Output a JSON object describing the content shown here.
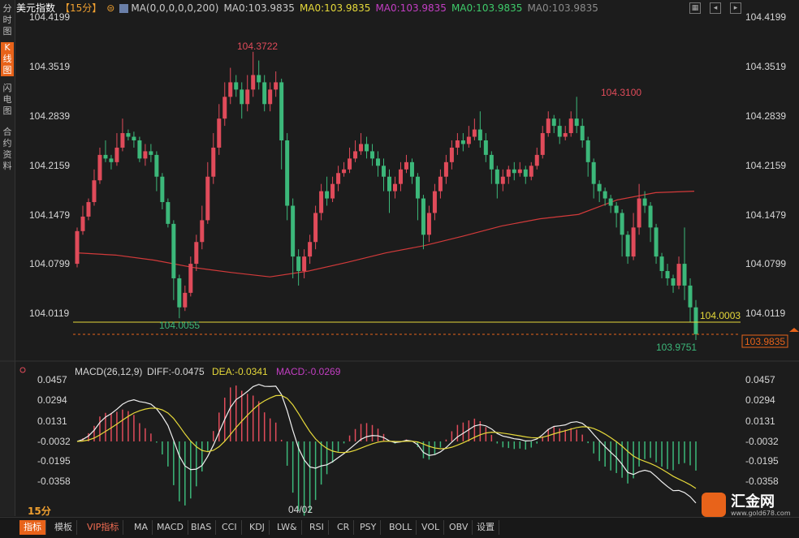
{
  "sidebar": {
    "tabs": [
      {
        "label": "分时图",
        "active": false
      },
      {
        "label": "K线图",
        "active": true
      },
      {
        "label": "闪电图",
        "active": false
      },
      {
        "label": "合约资料",
        "active": false
      }
    ]
  },
  "header": {
    "instrument": "美元指数",
    "period_badge": "【15分】",
    "ma_config": "MA(0,0,0,0,0,200)",
    "ma_values": [
      {
        "label": "MA0:103.9835",
        "color": "#c8c8c8"
      },
      {
        "label": "MA0:103.9835",
        "color": "#e6d93a"
      },
      {
        "label": "MA0:103.9835",
        "color": "#c33ec3"
      },
      {
        "label": "MA0:103.9835",
        "color": "#3ecb6a"
      },
      {
        "label": "MA0:103.9835",
        "color": "#8a8a8a"
      }
    ]
  },
  "price_axis": [
    "104.4199",
    "104.3519",
    "104.2839",
    "104.2159",
    "104.1479",
    "104.0799",
    "104.0119"
  ],
  "annotations": {
    "high1": "104.3722",
    "high2": "104.3100",
    "low1": "104.0055",
    "low2": "103.9751",
    "hline": "104.0003",
    "current_tag": "103.9835"
  },
  "macd": {
    "title": "MACD(26,12,9)",
    "diff": "DIFF:-0.0475",
    "dea": "DEA:-0.0341",
    "macd": "MACD:-0.0269",
    "axis": [
      "0.0457",
      "0.0294",
      "0.0131",
      "-0.0032",
      "-0.0195",
      "-0.0358"
    ]
  },
  "date_label": "04/02",
  "period_label": "15分",
  "toolbar": [
    "指标",
    "模板",
    "VIP指标",
    "MA",
    "MACD",
    "BIAS",
    "CCI",
    "KDJ",
    "LW&",
    "RSI",
    "CR",
    "PSY",
    "BOLL",
    "VOL",
    "OBV",
    "设置"
  ],
  "logo": {
    "name": "汇金网",
    "url": "www.gold678.com"
  },
  "colors": {
    "up": "#e04b5a",
    "down": "#3cb87a",
    "ma": "#d23a3a",
    "accent": "#e8631a"
  },
  "chart_data": {
    "type": "candlestick",
    "candles": [
      [
        104.08,
        104.125,
        104.075,
        104.13
      ],
      [
        104.125,
        104.145,
        104.12,
        104.16
      ],
      [
        104.145,
        104.165,
        104.14,
        104.17
      ],
      [
        104.165,
        104.195,
        104.16,
        104.21
      ],
      [
        104.195,
        104.23,
        104.19,
        104.24
      ],
      [
        104.23,
        104.225,
        104.22,
        104.25
      ],
      [
        104.225,
        104.22,
        104.21,
        104.23
      ],
      [
        104.22,
        104.24,
        104.215,
        104.26
      ],
      [
        104.24,
        104.26,
        104.235,
        104.28
      ],
      [
        104.26,
        104.255,
        104.25,
        104.265
      ],
      [
        104.255,
        104.25,
        104.24,
        104.262
      ],
      [
        104.25,
        104.225,
        104.22,
        104.255
      ],
      [
        104.225,
        104.235,
        104.215,
        104.245
      ],
      [
        104.235,
        104.23,
        104.22,
        104.245
      ],
      [
        104.23,
        104.2,
        104.18,
        104.235
      ],
      [
        104.2,
        104.165,
        104.155,
        104.205
      ],
      [
        104.165,
        104.135,
        104.13,
        104.17
      ],
      [
        104.135,
        104.06,
        104.03,
        104.14
      ],
      [
        104.06,
        104.02,
        104.005,
        104.065
      ],
      [
        104.02,
        104.04,
        104.015,
        104.05
      ],
      [
        104.04,
        104.08,
        104.035,
        104.09
      ],
      [
        104.08,
        104.11,
        104.07,
        104.12
      ],
      [
        104.11,
        104.14,
        104.1,
        104.16
      ],
      [
        104.14,
        104.2,
        104.135,
        104.22
      ],
      [
        104.2,
        104.24,
        104.19,
        104.26
      ],
      [
        104.24,
        104.28,
        104.23,
        104.3
      ],
      [
        104.28,
        104.31,
        104.27,
        104.33
      ],
      [
        104.31,
        104.33,
        104.3,
        104.35
      ],
      [
        104.33,
        104.32,
        104.31,
        104.34
      ],
      [
        104.32,
        104.3,
        104.28,
        104.33
      ],
      [
        104.3,
        104.32,
        104.29,
        104.34
      ],
      [
        104.32,
        104.34,
        104.31,
        104.372
      ],
      [
        104.34,
        104.33,
        104.32,
        104.36
      ],
      [
        104.33,
        104.3,
        104.29,
        104.34
      ],
      [
        104.3,
        104.32,
        104.29,
        104.33
      ],
      [
        104.32,
        104.33,
        104.31,
        104.345
      ],
      [
        104.33,
        104.25,
        104.21,
        104.335
      ],
      [
        104.25,
        104.16,
        104.14,
        104.26
      ],
      [
        104.16,
        104.09,
        104.06,
        104.17
      ],
      [
        104.09,
        104.07,
        104.05,
        104.1
      ],
      [
        104.07,
        104.09,
        104.06,
        104.1
      ],
      [
        104.09,
        104.11,
        104.08,
        104.12
      ],
      [
        104.11,
        104.15,
        104.1,
        104.16
      ],
      [
        104.15,
        104.18,
        104.14,
        104.19
      ],
      [
        104.18,
        104.17,
        104.16,
        104.2
      ],
      [
        104.17,
        104.19,
        104.165,
        104.2
      ],
      [
        104.19,
        104.205,
        104.18,
        104.215
      ],
      [
        104.205,
        104.21,
        104.2,
        104.22
      ],
      [
        104.21,
        104.225,
        104.205,
        104.24
      ],
      [
        104.225,
        104.235,
        104.22,
        104.25
      ],
      [
        104.235,
        104.245,
        104.23,
        104.26
      ],
      [
        104.245,
        104.235,
        104.225,
        104.255
      ],
      [
        104.235,
        104.225,
        104.215,
        104.245
      ],
      [
        104.225,
        104.215,
        104.2,
        104.235
      ],
      [
        104.215,
        104.2,
        104.18,
        104.225
      ],
      [
        104.2,
        104.18,
        104.15,
        104.21
      ],
      [
        104.18,
        104.19,
        104.17,
        104.2
      ],
      [
        104.19,
        104.21,
        104.18,
        104.22
      ],
      [
        104.21,
        104.22,
        104.205,
        104.23
      ],
      [
        104.22,
        104.2,
        104.19,
        104.225
      ],
      [
        104.2,
        104.17,
        104.14,
        104.205
      ],
      [
        104.17,
        104.12,
        104.1,
        104.175
      ],
      [
        104.12,
        104.15,
        104.11,
        104.16
      ],
      [
        104.15,
        104.18,
        104.14,
        104.19
      ],
      [
        104.18,
        104.2,
        104.17,
        104.21
      ],
      [
        104.2,
        104.22,
        104.19,
        104.23
      ],
      [
        104.22,
        104.24,
        104.21,
        104.25
      ],
      [
        104.24,
        104.25,
        104.23,
        104.26
      ],
      [
        104.25,
        104.245,
        104.235,
        104.26
      ],
      [
        104.245,
        104.255,
        104.24,
        104.27
      ],
      [
        104.255,
        104.265,
        104.25,
        104.28
      ],
      [
        104.265,
        104.25,
        104.24,
        104.29
      ],
      [
        104.25,
        104.23,
        104.22,
        104.26
      ],
      [
        104.23,
        104.21,
        104.19,
        104.235
      ],
      [
        104.21,
        104.19,
        104.17,
        104.215
      ],
      [
        104.19,
        104.2,
        104.18,
        104.21
      ],
      [
        104.2,
        104.21,
        104.19,
        104.215
      ],
      [
        104.21,
        104.205,
        104.195,
        104.22
      ],
      [
        104.205,
        104.21,
        104.2,
        104.22
      ],
      [
        104.21,
        104.2,
        104.19,
        104.215
      ],
      [
        104.2,
        104.215,
        104.195,
        104.22
      ],
      [
        104.215,
        104.23,
        104.21,
        104.24
      ],
      [
        104.23,
        104.26,
        104.225,
        104.27
      ],
      [
        104.26,
        104.28,
        104.255,
        104.29
      ],
      [
        104.28,
        104.27,
        104.26,
        104.285
      ],
      [
        104.27,
        104.255,
        104.245,
        104.28
      ],
      [
        104.255,
        104.26,
        104.25,
        104.27
      ],
      [
        104.26,
        104.28,
        104.255,
        104.29
      ],
      [
        104.28,
        104.27,
        104.26,
        104.31
      ],
      [
        104.27,
        104.25,
        104.24,
        104.28
      ],
      [
        104.25,
        104.22,
        104.2,
        104.255
      ],
      [
        104.22,
        104.19,
        104.17,
        104.225
      ],
      [
        104.19,
        104.18,
        104.165,
        104.195
      ],
      [
        104.18,
        104.17,
        104.16,
        104.185
      ],
      [
        104.17,
        104.16,
        104.15,
        104.175
      ],
      [
        104.16,
        104.15,
        104.13,
        104.165
      ],
      [
        104.15,
        104.12,
        104.09,
        104.155
      ],
      [
        104.12,
        104.09,
        104.08,
        104.125
      ],
      [
        104.09,
        104.13,
        104.085,
        104.15
      ],
      [
        104.13,
        104.17,
        104.12,
        104.19
      ],
      [
        104.17,
        104.16,
        104.15,
        104.18
      ],
      [
        104.16,
        104.13,
        104.11,
        104.165
      ],
      [
        104.13,
        104.09,
        104.08,
        104.135
      ],
      [
        104.09,
        104.07,
        104.06,
        104.095
      ],
      [
        104.07,
        104.06,
        104.05,
        104.08
      ],
      [
        104.06,
        104.05,
        104.04,
        104.065
      ],
      [
        104.05,
        104.08,
        104.045,
        104.09
      ],
      [
        104.08,
        104.05,
        104.03,
        104.13
      ],
      [
        104.05,
        104.02,
        104.0,
        104.06
      ],
      [
        104.02,
        103.983,
        103.975,
        104.03
      ]
    ],
    "ma200": [
      104.095,
      104.092,
      104.085,
      104.075,
      104.068,
      104.062,
      104.07,
      104.082,
      104.095,
      104.105,
      104.118,
      104.132,
      104.142,
      104.148,
      104.168,
      104.178,
      104.18
    ]
  }
}
